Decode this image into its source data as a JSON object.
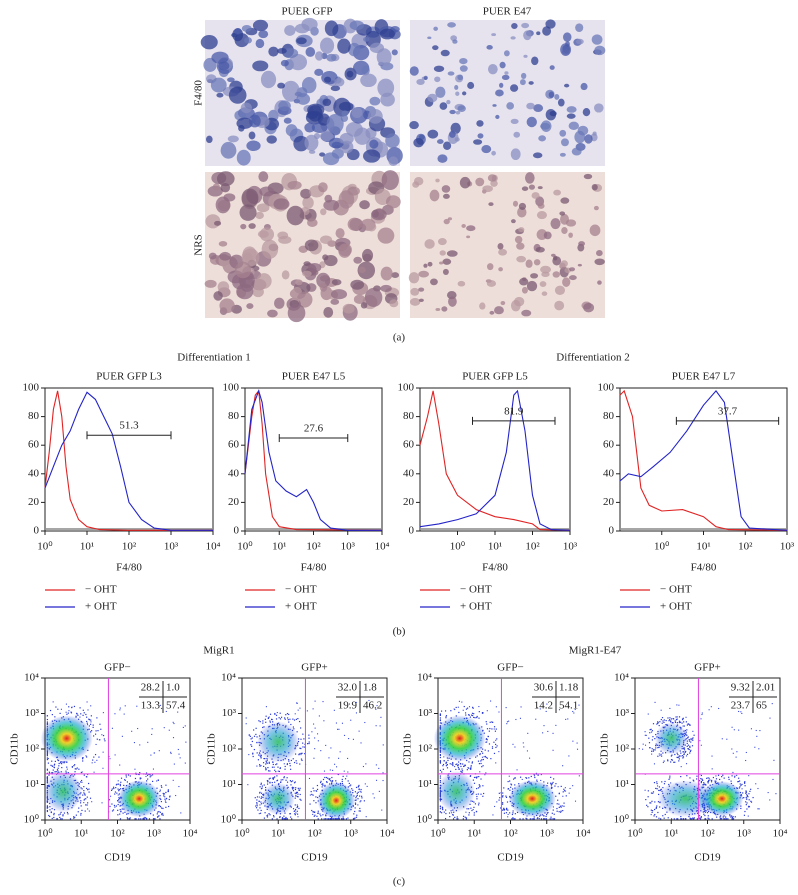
{
  "panel_a": {
    "columns": [
      "PUER GFP",
      "PUER E47"
    ],
    "rows": [
      "F4/80",
      "NRS"
    ],
    "label": "(a)"
  },
  "panel_b": {
    "groups": [
      "Differentiation 1",
      "Differentiation 2"
    ],
    "x_label": "F4/80",
    "legend": [
      "− OHT",
      "+ OHT"
    ],
    "legend_colors": [
      "#e02424",
      "#2424c8"
    ],
    "label": "(b)",
    "ylim": [
      0,
      100
    ],
    "yticks": [
      0,
      20,
      40,
      60,
      80,
      100
    ],
    "plots": [
      {
        "title": "PUER GFP L3",
        "xlim": [
          0,
          4
        ],
        "xticks": [
          {
            "value": 0,
            "label": "10⁰"
          },
          {
            "value": 1,
            "label": "10¹"
          },
          {
            "value": 2,
            "label": "10²"
          },
          {
            "value": 3,
            "label": "10³"
          },
          {
            "value": 4,
            "label": "10⁴"
          }
        ],
        "gate": {
          "from": 1.0,
          "to": 3.0,
          "y": 67,
          "label": "51.3"
        },
        "minus": {
          "x": [
            0,
            0.1,
            0.2,
            0.3,
            0.4,
            0.5,
            0.6,
            0.8,
            1.0,
            1.3,
            2,
            4
          ],
          "y": [
            30,
            55,
            85,
            98,
            80,
            45,
            22,
            8,
            3,
            1,
            0.5,
            0.5
          ]
        },
        "plus": {
          "x": [
            0,
            0.2,
            0.4,
            0.6,
            0.8,
            1.0,
            1.2,
            1.4,
            1.6,
            1.8,
            2.0,
            2.3,
            2.6,
            3,
            4
          ],
          "y": [
            30,
            45,
            60,
            70,
            85,
            97,
            92,
            80,
            68,
            45,
            20,
            8,
            2,
            0.5,
            0.5
          ]
        }
      },
      {
        "title": "PUER E47 L5",
        "xlim": [
          0,
          4
        ],
        "xticks": [
          {
            "value": 0,
            "label": "10⁰"
          },
          {
            "value": 1,
            "label": "10¹"
          },
          {
            "value": 2,
            "label": "10²"
          },
          {
            "value": 3,
            "label": "10³"
          },
          {
            "value": 4,
            "label": "10⁴"
          }
        ],
        "gate": {
          "from": 1.0,
          "to": 3.0,
          "y": 65,
          "label": "27.6"
        },
        "minus": {
          "x": [
            0,
            0.2,
            0.3,
            0.4,
            0.5,
            0.6,
            0.8,
            1,
            1.5,
            4
          ],
          "y": [
            40,
            80,
            95,
            98,
            75,
            40,
            10,
            3,
            1,
            0.5
          ]
        },
        "plus": {
          "x": [
            0,
            0.2,
            0.4,
            0.5,
            0.7,
            0.9,
            1.2,
            1.5,
            1.8,
            2.0,
            2.2,
            2.5,
            3,
            4
          ],
          "y": [
            40,
            85,
            98,
            90,
            55,
            35,
            28,
            24,
            29,
            20,
            8,
            2,
            0.5,
            0.5
          ]
        }
      },
      {
        "title": "PUER GFP L5",
        "xlim": [
          -1,
          3
        ],
        "xticks": [
          {
            "value": 0,
            "label": "10⁰"
          },
          {
            "value": 1,
            "label": "10¹"
          },
          {
            "value": 2,
            "label": "10²"
          },
          {
            "value": 3,
            "label": "10³"
          }
        ],
        "gate": {
          "from": 0.4,
          "to": 2.6,
          "y": 77,
          "label": "81.9"
        },
        "minus": {
          "x": [
            -1,
            -0.8,
            -0.65,
            -0.5,
            -0.3,
            0,
            0.5,
            1,
            1.5,
            2,
            2.2,
            3
          ],
          "y": [
            60,
            80,
            98,
            75,
            40,
            25,
            15,
            10,
            8,
            5,
            1,
            0.5
          ]
        },
        "plus": {
          "x": [
            -1,
            -0.5,
            0,
            0.5,
            1,
            1.3,
            1.5,
            1.6,
            1.8,
            2,
            2.2,
            2.5,
            3
          ],
          "y": [
            3,
            5,
            8,
            12,
            25,
            55,
            95,
            98,
            70,
            25,
            5,
            1,
            0.5
          ]
        }
      },
      {
        "title": "PUER E47 L7",
        "xlim": [
          -1,
          3
        ],
        "xticks": [
          {
            "value": 0,
            "label": "10⁰"
          },
          {
            "value": 1,
            "label": "10¹"
          },
          {
            "value": 2,
            "label": "10²"
          },
          {
            "value": 3,
            "label": "10³"
          }
        ],
        "gate": {
          "from": 0.35,
          "to": 2.8,
          "y": 77,
          "label": "37.7"
        },
        "minus": {
          "x": [
            -1,
            -0.9,
            -0.7,
            -0.5,
            -0.3,
            0,
            0.5,
            1,
            1.3,
            1.6,
            3
          ],
          "y": [
            95,
            98,
            80,
            30,
            18,
            14,
            15,
            10,
            3,
            1,
            0.5
          ]
        },
        "plus": {
          "x": [
            -1,
            -0.8,
            -0.5,
            -0.2,
            0.2,
            0.6,
            1,
            1.3,
            1.5,
            1.7,
            1.9,
            2.1,
            3
          ],
          "y": [
            35,
            40,
            38,
            45,
            55,
            70,
            88,
            98,
            90,
            50,
            10,
            2,
            0.5
          ]
        }
      }
    ]
  },
  "panel_c": {
    "groups": [
      "MigR1",
      "MigR1-E47"
    ],
    "x_label": "CD19",
    "y_label": "CD11b",
    "label": "(c)",
    "ticks": [
      {
        "value": 0,
        "label": "10⁰"
      },
      {
        "value": 1,
        "label": "10¹"
      },
      {
        "value": 2,
        "label": "10²"
      },
      {
        "value": 3,
        "label": "10³"
      },
      {
        "value": 4,
        "label": "10⁴"
      }
    ],
    "plots": [
      {
        "title": "GFP−",
        "quadrants": [
          "28.2",
          "1.0",
          "13.3",
          "57.4"
        ]
      },
      {
        "title": "GFP+",
        "quadrants": [
          "32.0",
          "1.8",
          "19.9",
          "46.2"
        ]
      },
      {
        "title": "GFP−",
        "quadrants": [
          "30.6",
          "1.18",
          "14.2",
          "54.1"
        ]
      },
      {
        "title": "GFP+",
        "quadrants": [
          "9.32",
          "2.01",
          "23.7",
          "65"
        ]
      }
    ]
  }
}
